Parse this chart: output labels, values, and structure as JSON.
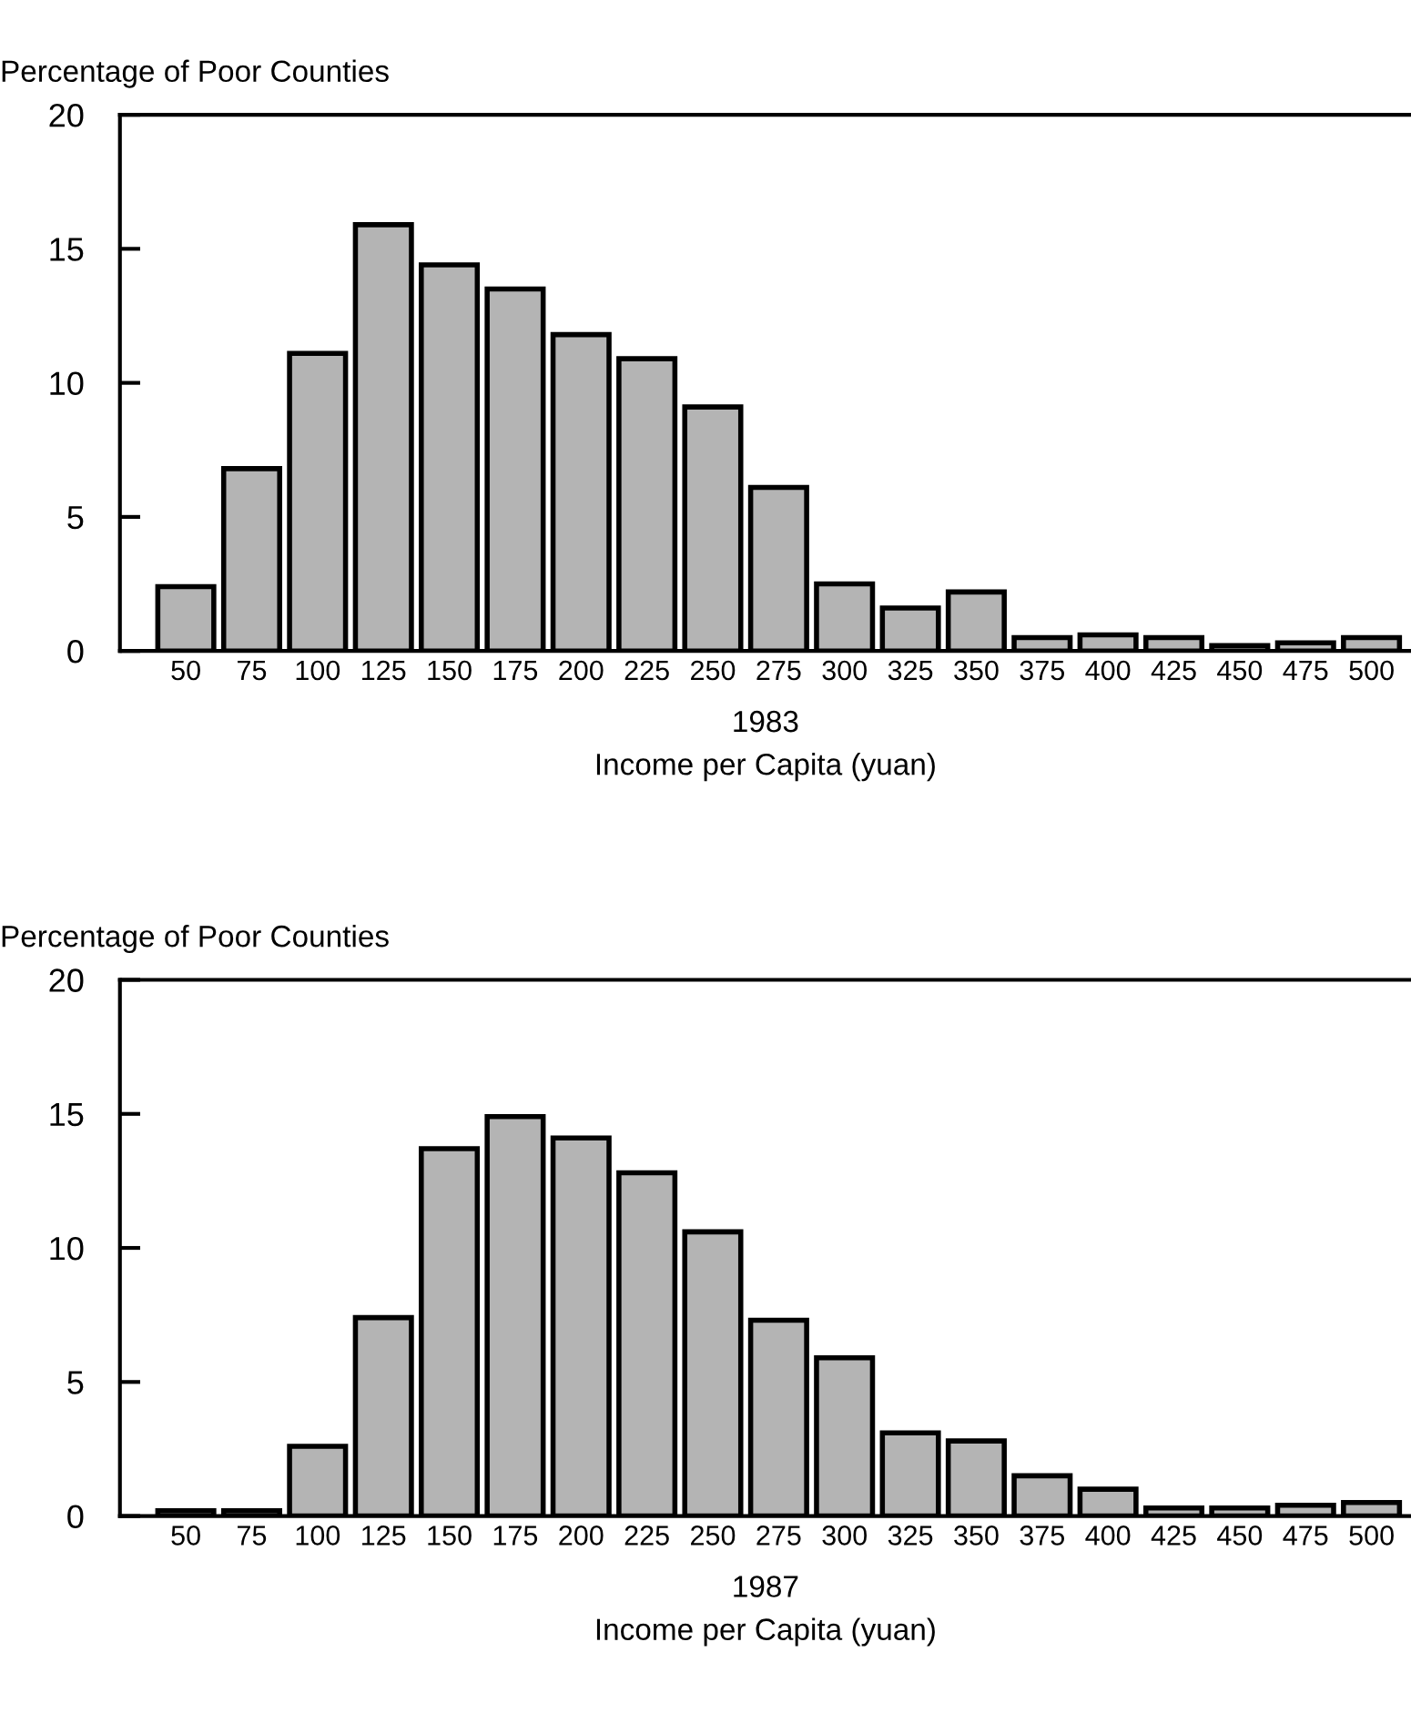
{
  "chart_data": [
    {
      "type": "bar",
      "title": "1983",
      "ylabel": "Percentage of Poor Counties",
      "xlabel": "Income per Capita (yuan)",
      "categories": [
        "50",
        "75",
        "100",
        "125",
        "150",
        "175",
        "200",
        "225",
        "250",
        "275",
        "300",
        "325",
        "350",
        "375",
        "400",
        "425",
        "450",
        "475",
        "500"
      ],
      "values": [
        2.4,
        6.8,
        11.1,
        15.9,
        14.4,
        13.5,
        11.8,
        10.9,
        9.1,
        6.1,
        2.5,
        1.6,
        2.2,
        0.5,
        0.6,
        0.5,
        0.2,
        0.3,
        0.5
      ],
      "color": "#b4b4b4",
      "ylim": [
        0,
        20
      ],
      "yticks": [
        0,
        5,
        10,
        15,
        20
      ],
      "grid": false,
      "legend": false
    },
    {
      "type": "bar",
      "title": "1987",
      "ylabel": "Percentage of Poor Counties",
      "xlabel": "Income per Capita (yuan)",
      "categories": [
        "50",
        "75",
        "100",
        "125",
        "150",
        "175",
        "200",
        "225",
        "250",
        "275",
        "300",
        "325",
        "350",
        "375",
        "400",
        "425",
        "450",
        "475",
        "500"
      ],
      "values": [
        0.2,
        0.2,
        2.6,
        7.4,
        13.7,
        14.9,
        14.1,
        12.8,
        10.6,
        7.3,
        5.9,
        3.1,
        2.8,
        1.5,
        1.0,
        0.3,
        0.3,
        0.4,
        0.5
      ],
      "color": "#b4b4b4",
      "ylim": [
        0,
        20
      ],
      "yticks": [
        0,
        5,
        10,
        15,
        20
      ],
      "grid": false,
      "legend": false
    }
  ]
}
